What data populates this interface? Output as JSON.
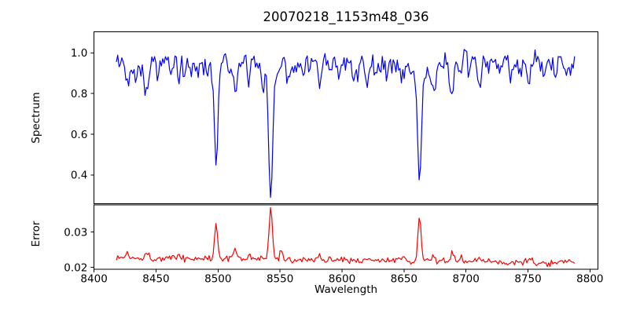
{
  "figure": {
    "title": "20070218_1153m48_036",
    "xlabel": "Wavelength",
    "background": "#ffffff",
    "frame_color": "#000000"
  },
  "chart_data": [
    {
      "type": "line",
      "panel": "spectrum",
      "ylabel": "Spectrum",
      "line_color": "#0000ff",
      "xlim": [
        8399.8,
        8806.5
      ],
      "ylim": [
        0.26,
        1.103
      ],
      "yticks": [
        {
          "v": 1.0,
          "label": "1.0"
        },
        {
          "v": 0.8,
          "label": "0.8"
        },
        {
          "v": 0.6,
          "label": "0.6"
        },
        {
          "v": 0.4,
          "label": "0.4"
        }
      ],
      "x_start": 8418,
      "x_end": 8788.6,
      "x_step": 1.1,
      "continuum_level": 0.952,
      "noise_amp": 0.07,
      "seed": 42,
      "grid": false,
      "deep_lines": [
        {
          "wavelength": 8498.5,
          "min_flux": 0.44
        },
        {
          "wavelength": 8542.5,
          "min_flux": 0.3
        },
        {
          "wavelength": 8662.5,
          "min_flux": 0.36
        }
      ],
      "absorption_features": [
        [
          8427,
          0.1,
          1.5
        ],
        [
          8434,
          0.08,
          1.3
        ],
        [
          8442,
          0.16,
          1.6
        ],
        [
          8452,
          0.05,
          1.2
        ],
        [
          8462,
          0.06,
          1.2
        ],
        [
          8468,
          0.08,
          1.3
        ],
        [
          8473,
          0.07,
          1.2
        ],
        [
          8479,
          0.05,
          1.1
        ],
        [
          8484,
          0.06,
          1.2
        ],
        [
          8498.5,
          0.46,
          1.3
        ],
        [
          8498.5,
          0.055,
          6.0
        ],
        [
          8505,
          -0.09,
          1.5
        ],
        [
          8514,
          0.16,
          1.6
        ],
        [
          8525,
          0.07,
          1.3
        ],
        [
          8536,
          0.05,
          1.2
        ],
        [
          8542.5,
          0.585,
          1.6
        ],
        [
          8542.5,
          0.065,
          8.0
        ],
        [
          8552,
          -0.07,
          1.6
        ],
        [
          8557,
          0.06,
          1.3
        ],
        [
          8565,
          0.05,
          1.2
        ],
        [
          8582,
          0.11,
          1.5
        ],
        [
          8590,
          0.05,
          1.1
        ],
        [
          8598,
          0.07,
          1.3
        ],
        [
          8611,
          0.07,
          1.3
        ],
        [
          8620.5,
          0.09,
          1.4
        ],
        [
          8630,
          0.05,
          1.1
        ],
        [
          8637,
          0.06,
          1.2
        ],
        [
          8648,
          0.08,
          1.3
        ],
        [
          8662.5,
          0.53,
          1.5
        ],
        [
          8662.5,
          0.06,
          7.0
        ],
        [
          8674,
          0.155,
          1.5
        ],
        [
          8688.5,
          0.17,
          1.7
        ],
        [
          8696,
          0.07,
          1.2
        ],
        [
          8703,
          0.05,
          1.1
        ],
        [
          8711,
          0.1,
          1.5
        ],
        [
          8718,
          0.05,
          1.1
        ],
        [
          8727,
          0.06,
          1.2
        ],
        [
          8736,
          0.05,
          1.1
        ],
        [
          8744,
          0.06,
          1.2
        ],
        [
          8751,
          0.11,
          1.4
        ],
        [
          8763,
          0.08,
          1.3
        ],
        [
          8772,
          0.06,
          1.2
        ],
        [
          8780,
          0.05,
          1.1
        ],
        [
          8789,
          -0.09,
          1.2
        ]
      ]
    },
    {
      "type": "line",
      "panel": "error",
      "ylabel": "Error",
      "line_color": "#ff0000",
      "xlim": [
        8399.8,
        8806.5
      ],
      "ylim": [
        0.0195,
        0.0377
      ],
      "yticks": [
        {
          "v": 0.03,
          "label": "0.03"
        },
        {
          "v": 0.02,
          "label": "0.02"
        }
      ],
      "x_start": 8418,
      "x_end": 8788.6,
      "x_step": 1.1,
      "baseline_start": 0.0228,
      "baseline_end": 0.0213,
      "noise_amp": 0.0012,
      "seed": 1337,
      "grid": false,
      "peak_lines": [
        {
          "wavelength": 8498.5,
          "max_error": 0.033
        },
        {
          "wavelength": 8542.5,
          "max_error": 0.037
        },
        {
          "wavelength": 8662.5,
          "max_error": 0.0355
        }
      ],
      "peak_features": [
        [
          8427,
          0.0012,
          1.5
        ],
        [
          8442,
          0.0015,
          1.5
        ],
        [
          8468,
          0.001,
          1.3
        ],
        [
          8498.5,
          0.0105,
          1.2
        ],
        [
          8514,
          0.003,
          1.5
        ],
        [
          8525,
          0.0012,
          1.3
        ],
        [
          8542.5,
          0.0145,
          1.3
        ],
        [
          8551,
          0.0018,
          1.4
        ],
        [
          8582,
          0.0013,
          1.4
        ],
        [
          8598,
          0.0008,
          1.3
        ],
        [
          8621,
          0.001,
          1.4
        ],
        [
          8648,
          0.0009,
          1.3
        ],
        [
          8662.5,
          0.0128,
          1.3
        ],
        [
          8674,
          0.0016,
          1.4
        ],
        [
          8689,
          0.0024,
          1.5
        ],
        [
          8696,
          0.001,
          1.2
        ],
        [
          8711,
          0.0012,
          1.4
        ],
        [
          8751,
          0.001,
          1.3
        ]
      ]
    }
  ],
  "axes": {
    "xlabel": "Wavelength",
    "xticks": [
      {
        "v": 8400,
        "label": "8400"
      },
      {
        "v": 8450,
        "label": "8450"
      },
      {
        "v": 8500,
        "label": "8500"
      },
      {
        "v": 8550,
        "label": "8550"
      },
      {
        "v": 8600,
        "label": "8600"
      },
      {
        "v": 8650,
        "label": "8650"
      },
      {
        "v": 8700,
        "label": "8700"
      },
      {
        "v": 8750,
        "label": "8750"
      },
      {
        "v": 8800,
        "label": "8800"
      }
    ]
  }
}
